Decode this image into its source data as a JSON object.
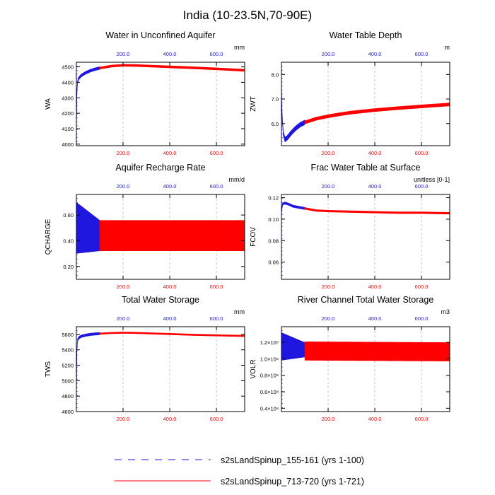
{
  "figure": {
    "title": "India (10-23.5N,70-90E)"
  },
  "colors": {
    "spinup_155": "#1f17e0",
    "spinup_713": "#ff0000",
    "frame": "#000000",
    "grid": "#b4b4b4"
  },
  "legend": {
    "items": [
      {
        "label": "s2sLandSpinup_155-161 (yrs 1-100)",
        "style": "dashed",
        "color": "#1f17e0"
      },
      {
        "label": "s2sLandSpinup_713-720 (yrs 1-721)",
        "style": "solid",
        "color": "#ff0000"
      }
    ]
  },
  "chart_data": [
    {
      "id": "wa",
      "type": "line",
      "title": "Water in Unconfined Aquifer",
      "ylabel": "WA",
      "units": "mm",
      "xlim": [
        0,
        721
      ],
      "ylim": [
        3990,
        4530
      ],
      "yticks": [
        4000,
        4100,
        4200,
        4300,
        4400,
        4500
      ],
      "ytick_labels": [
        "4000",
        "4100",
        "4200",
        "4300",
        "4400",
        "4500"
      ],
      "xticks": [
        200,
        400,
        600
      ],
      "xtick_labels": [
        "200.0",
        "400.0",
        "600.0"
      ],
      "grid_x": true,
      "series": [
        {
          "color_key": "spinup_155",
          "x": [
            0,
            2,
            5,
            10,
            20,
            40,
            60,
            80,
            100
          ],
          "y": [
            4080,
            4330,
            4400,
            4425,
            4443,
            4462,
            4475,
            4485,
            4492
          ],
          "amplitude": 10
        },
        {
          "color_key": "spinup_713",
          "x": [
            100,
            150,
            200,
            250,
            300,
            400,
            500,
            600,
            721
          ],
          "y": [
            4492,
            4505,
            4510,
            4509,
            4506,
            4500,
            4494,
            4487,
            4478
          ],
          "amplitude": 8
        }
      ]
    },
    {
      "id": "zwt",
      "type": "line",
      "title": "Water Table Depth",
      "ylabel": "ZWT",
      "units": "m",
      "xlim": [
        0,
        721
      ],
      "ylim": [
        5.1,
        8.5
      ],
      "yticks": [
        6,
        7,
        8
      ],
      "ytick_labels": [
        "6.0",
        "7.0",
        "8.0"
      ],
      "xticks": [
        200,
        400,
        600
      ],
      "xtick_labels": [
        "200.0",
        "400.0",
        "600.0"
      ],
      "grid_x": true,
      "series": [
        {
          "color_key": "spinup_155",
          "x": [
            0,
            3,
            8,
            15,
            25,
            40,
            60,
            80,
            100
          ],
          "y": [
            7.4,
            6.3,
            5.6,
            5.35,
            5.42,
            5.6,
            5.8,
            5.95,
            6.05
          ],
          "amplitude": 0.1
        },
        {
          "color_key": "spinup_713",
          "x": [
            100,
            150,
            200,
            250,
            300,
            400,
            500,
            600,
            721
          ],
          "y": [
            6.05,
            6.2,
            6.3,
            6.38,
            6.45,
            6.55,
            6.63,
            6.7,
            6.78
          ],
          "amplitude": 0.07
        }
      ]
    },
    {
      "id": "qcharge",
      "type": "line",
      "title": "Aquifer Recharge Rate",
      "ylabel": "QCHARGE",
      "units": "mm/d",
      "xlim": [
        0,
        721
      ],
      "ylim": [
        0.1,
        0.76
      ],
      "yticks": [
        0.2,
        0.4,
        0.6
      ],
      "ytick_labels": [
        "0.20",
        "0.40",
        "0.60"
      ],
      "xticks": [
        200,
        400,
        600
      ],
      "xtick_labels": [
        "200.0",
        "400.0",
        "600.0"
      ],
      "grid_x": true,
      "series": [
        {
          "color_key": "spinup_155",
          "x": [
            0,
            100
          ],
          "low": [
            0.3,
            0.32
          ],
          "high": [
            0.7,
            0.56
          ],
          "oscillation": "wide"
        },
        {
          "color_key": "spinup_713",
          "x": [
            100,
            721
          ],
          "low": [
            0.32,
            0.32
          ],
          "high": [
            0.56,
            0.56
          ],
          "oscillation": "wide"
        }
      ]
    },
    {
      "id": "fcov",
      "type": "line",
      "title": "Frac Water Table at Surface",
      "ylabel": "FCOV",
      "units": "unitless [0-1]",
      "xlim": [
        0,
        721
      ],
      "ylim": [
        0.044,
        0.123
      ],
      "yticks": [
        0.06,
        0.08,
        0.1,
        0.12
      ],
      "ytick_labels": [
        "0.06",
        "0.08",
        "0.10",
        "0.12"
      ],
      "xticks": [
        200,
        400,
        600
      ],
      "xtick_labels": [
        "200.0",
        "400.0",
        "600.0"
      ],
      "grid_x": true,
      "series": [
        {
          "color_key": "spinup_155",
          "x": [
            0,
            5,
            15,
            30,
            50,
            75,
            100
          ],
          "y": [
            0.108,
            0.114,
            0.115,
            0.114,
            0.112,
            0.111,
            0.11
          ],
          "amplitude": 0.0012
        },
        {
          "color_key": "spinup_713",
          "x": [
            100,
            150,
            200,
            300,
            400,
            500,
            600,
            721
          ],
          "y": [
            0.11,
            0.108,
            0.1075,
            0.107,
            0.1065,
            0.106,
            0.106,
            0.1055
          ],
          "amplitude": 0.001
        }
      ]
    },
    {
      "id": "tws",
      "type": "line",
      "title": "Total Water Storage",
      "ylabel": "TWS",
      "units": "mm",
      "xlim": [
        0,
        721
      ],
      "ylim": [
        4600,
        5700
      ],
      "yticks": [
        4600,
        4800,
        5000,
        5200,
        5400,
        5600
      ],
      "ytick_labels": [
        "4600",
        "4800",
        "5000",
        "5200",
        "5400",
        "5600"
      ],
      "xticks": [
        200,
        400,
        600
      ],
      "xtick_labels": [
        "200.0",
        "400.0",
        "600.0"
      ],
      "grid_x": true,
      "series": [
        {
          "color_key": "spinup_155",
          "x": [
            0,
            2,
            5,
            10,
            20,
            40,
            60,
            80,
            100
          ],
          "y": [
            4750,
            5380,
            5520,
            5555,
            5575,
            5590,
            5600,
            5606,
            5610
          ],
          "amplitude": 18
        },
        {
          "color_key": "spinup_713",
          "x": [
            100,
            150,
            200,
            250,
            300,
            400,
            500,
            600,
            721
          ],
          "y": [
            5610,
            5618,
            5622,
            5620,
            5615,
            5605,
            5595,
            5588,
            5580
          ],
          "amplitude": 12
        }
      ]
    },
    {
      "id": "volr",
      "type": "line",
      "title": "River Channel Total Water Storage",
      "ylabel": "VOLR",
      "units": "m3",
      "xlim": [
        0,
        721
      ],
      "ylim": [
        0.36,
        1.39
      ],
      "yticks": [
        0.4,
        0.6,
        0.8,
        1.0,
        1.2
      ],
      "ytick_labels": [
        "0.4×10⁸",
        "0.6×10⁸",
        "0.8×10⁸",
        "1.0×10⁸",
        "1.2×10⁸"
      ],
      "xticks": [
        200,
        400,
        600
      ],
      "xtick_labels": [
        "200.0",
        "400.0",
        "600.0"
      ],
      "grid_x": true,
      "series": [
        {
          "color_key": "spinup_155",
          "x": [
            0,
            100
          ],
          "low": [
            0.98,
            1.02
          ],
          "high": [
            1.32,
            1.2
          ],
          "oscillation": "wide"
        },
        {
          "color_key": "spinup_713",
          "x": [
            100,
            721
          ],
          "low": [
            0.98,
            0.97
          ],
          "high": [
            1.21,
            1.2
          ],
          "oscillation": "wide"
        }
      ]
    }
  ]
}
